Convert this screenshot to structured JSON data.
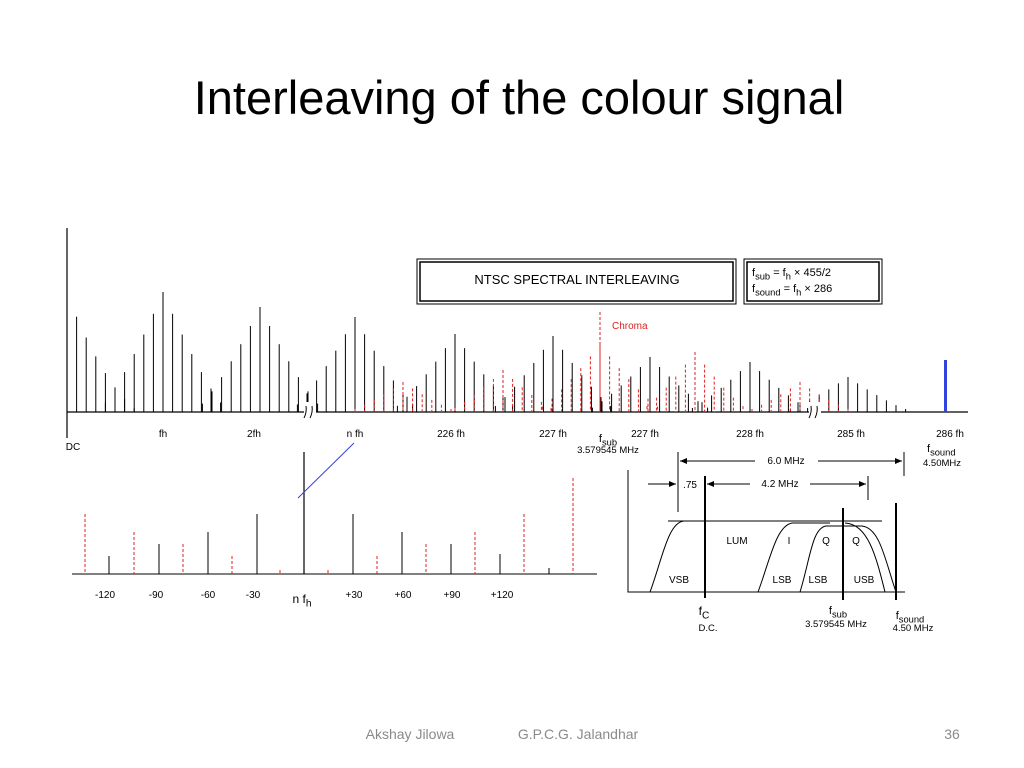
{
  "title": "Interleaving of the colour signal",
  "top_diagram": {
    "box_title": "NTSC SPECTRAL INTERLEAVING",
    "formulas": [
      [
        "f",
        "sub",
        " = f",
        "h",
        " × 455/2"
      ],
      [
        "f",
        "sound",
        " = f",
        "h",
        " × 286"
      ]
    ],
    "chroma_label": "Chroma",
    "dc_label": "DC",
    "axis_labels": [
      "fh",
      "2fh",
      "n fh",
      "226 fh",
      "227 fh",
      "227 fh",
      "228 fh",
      "285 fh",
      "286 fh"
    ],
    "fsub_label": [
      "f",
      "sub"
    ],
    "fsub_value": "3.579545 MHz",
    "fsound_label": [
      "f",
      "sound"
    ],
    "fsound_value": "4.50MHz"
  },
  "sideband_diagram": {
    "labels": [
      "-120",
      "-90",
      "-60",
      "-30",
      "+30",
      "+60",
      "+90",
      "+120"
    ],
    "center_label": [
      "n f",
      "h"
    ]
  },
  "band_diagram": {
    "span_label": "6.0 MHz",
    "video_label": "4.2 MHz",
    "vestigial_label": ".75",
    "band_labels": [
      "LUM",
      "I",
      "Q",
      "Q"
    ],
    "sideband_labels": [
      "VSB",
      "LSB",
      "LSB",
      "USB"
    ],
    "fc_label": [
      "f",
      "C"
    ],
    "fc_value": "D.C.",
    "fsub_label": [
      "f",
      "sub"
    ],
    "fsub_value": "3.579545 MHz",
    "fsound_label": [
      "f",
      "sound"
    ],
    "fsound_value": "4.50 MHz"
  },
  "footer": {
    "author": "Akshay Jilowa",
    "institute": "G.P.C.G. Jalandhar",
    "page": "36"
  }
}
